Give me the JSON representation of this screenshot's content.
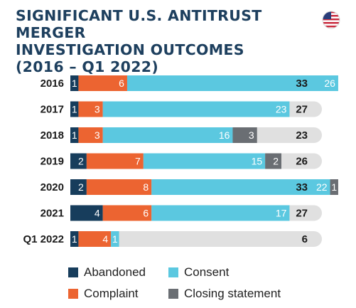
{
  "title_lines": [
    "SIGNIFICANT U.S. ANTITRUST MERGER",
    "INVESTIGATION OUTCOMES",
    "(2016 – Q1 2022)"
  ],
  "flag_icon": "us-flag-icon",
  "colors": {
    "Abandoned": "#173d5c",
    "Complaint": "#ec6431",
    "Consent": "#5bc8e0",
    "Closing statement": "#6a6e73",
    "track": "#e0e0e0",
    "title": "#1d3f5e"
  },
  "chart_data": {
    "type": "bar",
    "orientation": "horizontal",
    "stacked": true,
    "title": "SIGNIFICANT U.S. ANTITRUST MERGER INVESTIGATION OUTCOMES (2016 – Q1 2022)",
    "categories": [
      "2016",
      "2017",
      "2018",
      "2019",
      "2020",
      "2021",
      "Q1 2022"
    ],
    "series": [
      {
        "name": "Abandoned",
        "values": [
          1,
          1,
          1,
          2,
          2,
          4,
          1
        ]
      },
      {
        "name": "Complaint",
        "values": [
          6,
          3,
          3,
          7,
          8,
          6,
          4
        ]
      },
      {
        "name": "Consent",
        "values": [
          26,
          23,
          16,
          15,
          22,
          17,
          1
        ]
      },
      {
        "name": "Closing statement",
        "values": [
          0,
          0,
          3,
          2,
          1,
          0,
          0
        ]
      }
    ],
    "totals": [
      "33",
      "27",
      "23",
      "26",
      "33",
      "27",
      "6"
    ],
    "xlim": [
      0,
      33
    ],
    "legend": [
      "Abandoned",
      "Consent",
      "Complaint",
      "Closing statement"
    ],
    "legend_position": "bottom"
  }
}
